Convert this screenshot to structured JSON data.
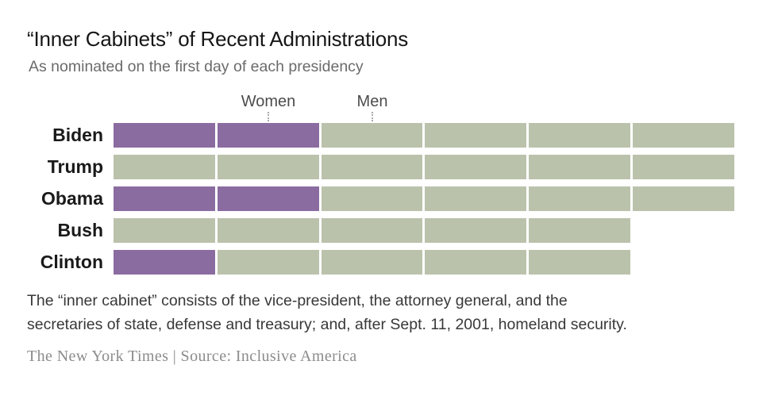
{
  "header": {
    "title": "“Inner Cabinets” of Recent Administrations",
    "subtitle": "As nominated on the first day of each presidency"
  },
  "chart_data": {
    "type": "bar",
    "orientation": "horizontal",
    "stacked": true,
    "title": "“Inner Cabinets” of Recent Administrations",
    "subtitle": "As nominated on the first day of each presidency",
    "unit": "one square per inner-cabinet seat",
    "categories": [
      "Biden",
      "Trump",
      "Obama",
      "Bush",
      "Clinton"
    ],
    "series": [
      {
        "name": "Women",
        "values": [
          2,
          0,
          2,
          0,
          1
        ],
        "color": "#8b6ca1"
      },
      {
        "name": "Men",
        "values": [
          4,
          6,
          4,
          5,
          4
        ],
        "color": "#bac2ac"
      }
    ],
    "totals": [
      6,
      6,
      6,
      5,
      5
    ],
    "legend": {
      "position": "top",
      "labels": [
        "Women",
        "Men"
      ]
    },
    "grid": false,
    "axes": "none"
  },
  "footnote": {
    "line1": "The “inner cabinet” consists of the vice-president, the attorney general, and the",
    "line2": "secretaries of state, defense and treasury; and, after Sept. 11, 2001, homeland security."
  },
  "source": "The New York Times | Source: Inclusive America",
  "colors": {
    "women": "#8b6ca1",
    "men": "#bac2ac",
    "background": "#ffffff"
  }
}
